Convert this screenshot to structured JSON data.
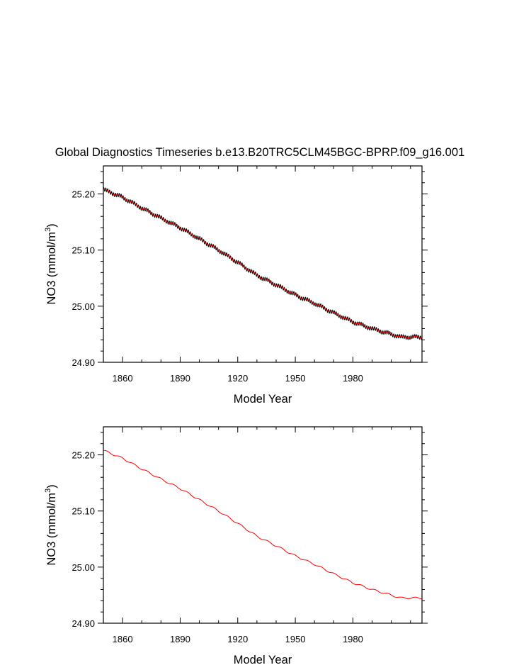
{
  "title": "Global Diagnostics Timeseries b.e13.B20TRC5CLM45BGC-BPRP.f09_g16.001",
  "colors": {
    "monthly": "#000000",
    "annual": "#ff0000"
  },
  "chart_data": [
    {
      "type": "line",
      "xlabel": "Model Year",
      "ylabel_prefix": "NO3 (mmol/m",
      "ylabel_sup": "3",
      "ylabel_suffix": ")",
      "xlim": [
        1850,
        2016
      ],
      "ylim": [
        24.9,
        25.25
      ],
      "xticks": [
        1860,
        1890,
        1920,
        1950,
        1980
      ],
      "xticklabels": [
        "1860",
        "1890",
        "1920",
        "1950",
        "1980"
      ],
      "yticks": [
        24.9,
        25.0,
        25.1,
        25.2
      ],
      "yticklabels": [
        "24.90",
        "25.00",
        "25.10",
        "25.20"
      ],
      "series": [
        {
          "kind": "monthly",
          "color": "#000000",
          "seasonal_amplitude": 0.003,
          "x": [
            1850,
            1860,
            1870,
            1880,
            1890,
            1900,
            1910,
            1920,
            1930,
            1940,
            1950,
            1960,
            1970,
            1980,
            1990,
            2000,
            2005
          ],
          "y": [
            25.208,
            25.194,
            25.175,
            25.157,
            25.14,
            25.12,
            25.1,
            25.078,
            25.055,
            25.038,
            25.02,
            25.005,
            24.988,
            24.972,
            24.96,
            24.95,
            24.945
          ]
        },
        {
          "kind": "annual",
          "color": "#ff0000",
          "x": [
            1850,
            1860,
            1870,
            1880,
            1890,
            1900,
            1910,
            1920,
            1930,
            1940,
            1950,
            1960,
            1970,
            1980,
            1990,
            2000,
            2005
          ],
          "y": [
            25.208,
            25.194,
            25.175,
            25.157,
            25.14,
            25.12,
            25.1,
            25.078,
            25.055,
            25.038,
            25.02,
            25.005,
            24.988,
            24.972,
            24.96,
            24.95,
            24.945
          ]
        }
      ]
    },
    {
      "type": "line",
      "xlabel": "Model Year",
      "ylabel_prefix": "NO3 (mmol/m",
      "ylabel_sup": "3",
      "ylabel_suffix": ")",
      "xlim": [
        1850,
        2016
      ],
      "ylim": [
        24.9,
        25.25
      ],
      "xticks": [
        1860,
        1890,
        1920,
        1950,
        1980
      ],
      "xticklabels": [
        "1860",
        "1890",
        "1920",
        "1950",
        "1980"
      ],
      "yticks": [
        24.9,
        25.0,
        25.1,
        25.2
      ],
      "yticklabels": [
        "24.90",
        "25.00",
        "25.10",
        "25.20"
      ],
      "series": [
        {
          "kind": "annual",
          "color": "#ff0000",
          "x": [
            1850,
            1860,
            1870,
            1880,
            1890,
            1900,
            1910,
            1920,
            1930,
            1940,
            1950,
            1960,
            1970,
            1980,
            1990,
            2000,
            2005
          ],
          "y": [
            25.208,
            25.194,
            25.175,
            25.157,
            25.14,
            25.12,
            25.1,
            25.078,
            25.055,
            25.038,
            25.02,
            25.005,
            24.988,
            24.972,
            24.96,
            24.95,
            24.945
          ]
        }
      ]
    }
  ]
}
